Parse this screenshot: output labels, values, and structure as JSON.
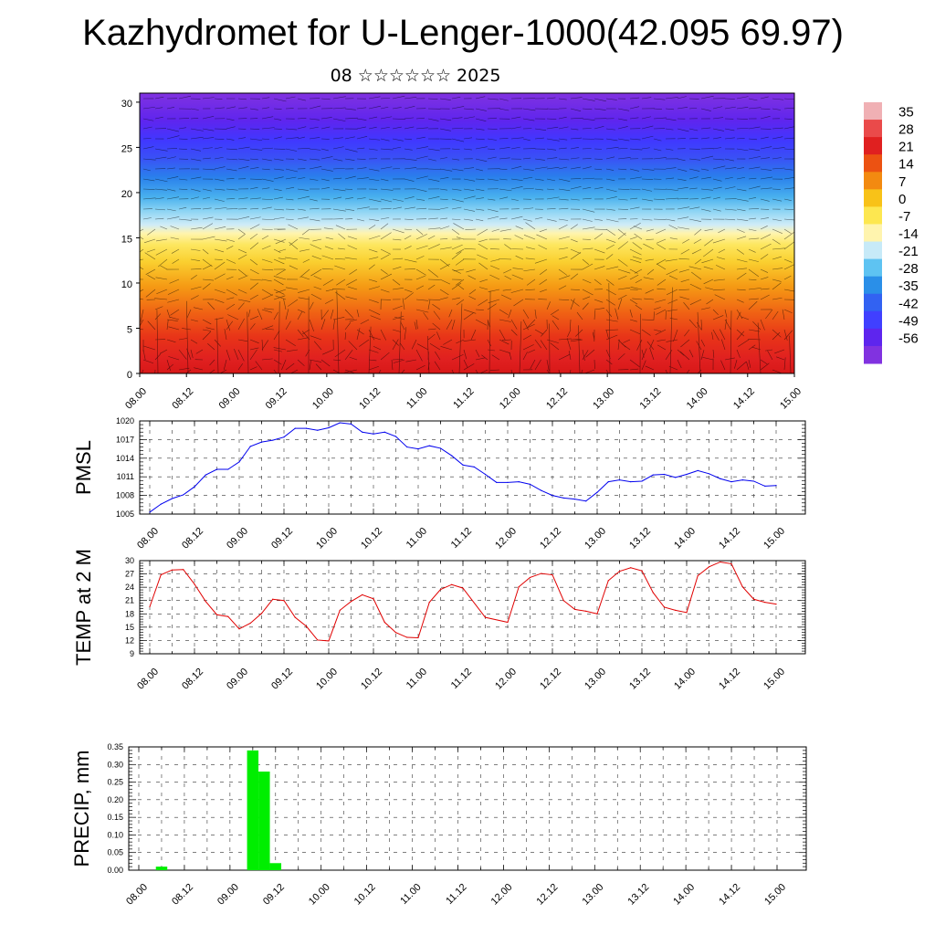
{
  "header": {
    "title": "Kazhydromet for U-Lenger-1000(42.095 69.97)",
    "subtitle": "08 ☆☆☆☆☆☆ 2025"
  },
  "time_axis": [
    "08.00",
    "08.12",
    "09.00",
    "09.12",
    "10.00",
    "10.12",
    "11.00",
    "11.12",
    "12.00",
    "12.12",
    "13.00",
    "13.12",
    "14.00",
    "14.12",
    "15.00"
  ],
  "chart_data": [
    {
      "type": "heatmap",
      "name": "vertical-section",
      "y_ticks": [
        0,
        5,
        10,
        15,
        20,
        25,
        30
      ],
      "ylim": [
        0,
        31
      ],
      "colorbar": {
        "labels": [
          "35",
          "28",
          "21",
          "14",
          "7",
          "0",
          "-7",
          "-14",
          "-21",
          "-28",
          "-35",
          "-42",
          "-49",
          "-56"
        ],
        "colors": [
          "#f0b0b4",
          "#ea4a4a",
          "#e02020",
          "#ec5212",
          "#f38a10",
          "#f8c218",
          "#fde750",
          "#fff4ae",
          "#c7eaf8",
          "#5ec3f2",
          "#2a8fe8",
          "#3262f2",
          "#4040ff",
          "#5e25ee",
          "#8132e0"
        ]
      }
    },
    {
      "type": "line",
      "name": "pmsl",
      "ylabel": "PMSL",
      "y_ticks": [
        1005,
        1008,
        1011,
        1014,
        1017,
        1020
      ],
      "ylim": [
        1005,
        1020
      ],
      "line_color": "#0000ee",
      "x": [
        0,
        0.25,
        0.5,
        0.75,
        1,
        1.25,
        1.5,
        1.75,
        2,
        2.25,
        2.5,
        2.75,
        3,
        3.25,
        3.5,
        3.75,
        4,
        4.25,
        4.5,
        4.75,
        5,
        5.25,
        5.5,
        5.75,
        6,
        6.25,
        6.5,
        6.75,
        7,
        7.25,
        7.5,
        7.75,
        8,
        8.25,
        8.5,
        8.75,
        9,
        9.25,
        9.5,
        9.75,
        10,
        10.25,
        10.5,
        10.75,
        11,
        11.25,
        11.5,
        11.75,
        12,
        12.25,
        12.5,
        12.75,
        13,
        13.25,
        13.5,
        13.75,
        14
      ],
      "values": [
        1005.3,
        1006.6,
        1007.5,
        1008.1,
        1009.4,
        1011.3,
        1012.2,
        1012.2,
        1013.4,
        1015.9,
        1016.6,
        1016.9,
        1017.4,
        1018.8,
        1018.8,
        1018.5,
        1018.9,
        1019.7,
        1019.5,
        1018.2,
        1017.9,
        1018.2,
        1017.5,
        1015.8,
        1015.5,
        1016.0,
        1015.6,
        1014.4,
        1012.9,
        1012.6,
        1011.4,
        1010.1,
        1010.1,
        1010.2,
        1009.8,
        1008.8,
        1008.0,
        1007.6,
        1007.4,
        1007.1,
        1008.5,
        1010.2,
        1010.5,
        1010.2,
        1010.3,
        1011.3,
        1011.4,
        1010.9,
        1011.4,
        1012.0,
        1011.5,
        1010.7,
        1010.2,
        1010.5,
        1010.3,
        1009.5,
        1009.6
      ]
    },
    {
      "type": "line",
      "name": "temperature",
      "ylabel": "TEMP at 2 M",
      "y_ticks": [
        9,
        12,
        15,
        18,
        21,
        24,
        27,
        30
      ],
      "ylim": [
        9,
        30
      ],
      "line_color": "#e00000",
      "x": [
        0,
        0.25,
        0.5,
        0.75,
        1,
        1.25,
        1.5,
        1.75,
        2,
        2.25,
        2.5,
        2.75,
        3,
        3.25,
        3.5,
        3.75,
        4,
        4.25,
        4.5,
        4.75,
        5,
        5.25,
        5.5,
        5.75,
        6,
        6.25,
        6.5,
        6.75,
        7,
        7.5,
        8,
        8.25,
        8.5,
        8.75,
        9,
        9.25,
        9.5,
        9.75,
        10,
        10.25,
        10.5,
        10.75,
        11,
        11.25,
        11.5,
        11.75,
        12,
        12.25,
        12.5,
        12.75,
        13,
        13.25,
        13.5,
        13.75,
        14
      ],
      "values": [
        19.6,
        26.8,
        27.9,
        28.0,
        24.7,
        20.8,
        17.8,
        17.4,
        14.6,
        15.9,
        18.1,
        21.3,
        21.0,
        17.2,
        15.2,
        12.1,
        11.9,
        18.8,
        20.8,
        22.3,
        21.4,
        16.1,
        13.8,
        12.7,
        12.6,
        20.6,
        23.5,
        24.6,
        23.8,
        17.2,
        16.1,
        24.1,
        26.2,
        27.1,
        26.8,
        21.0,
        19.0,
        18.6,
        18.0,
        25.5,
        27.6,
        28.4,
        27.7,
        22.8,
        19.5,
        18.8,
        18.3,
        26.6,
        28.6,
        29.7,
        29.3,
        24.1,
        21.3,
        20.6,
        20.2
      ]
    },
    {
      "type": "bar",
      "name": "precipitation",
      "ylabel": "PRECIP, mm",
      "y_ticks": [
        "0.00",
        "0.05",
        "0.10",
        "0.15",
        "0.20",
        "0.25",
        "0.30",
        "0.35"
      ],
      "ylim": [
        0,
        0.35
      ],
      "bar_color": "#00ee00",
      "x": [
        0.5,
        2.5,
        2.75,
        3.0
      ],
      "values": [
        0.01,
        0.34,
        0.28,
        0.02
      ]
    }
  ]
}
